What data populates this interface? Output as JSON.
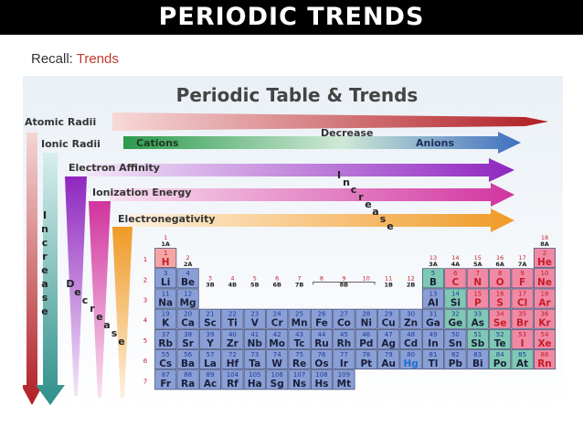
{
  "slide": {
    "title": "PERIODIC TRENDS",
    "recall_label": "Recall:",
    "recall_topic": "Trends",
    "title_bar_color": "#000000",
    "highlight_color": "#c0392b"
  },
  "figure": {
    "heading": "Periodic Table & Trends",
    "trends": {
      "atomic_radii": "Atomic Radii",
      "ionic_radii": "Ionic Radii",
      "cations": "Cations",
      "anions": "Anions",
      "decrease_top": "Decrease",
      "electron_affinity": "Electron Affinity",
      "ionization_energy": "Ionization Energy",
      "electronegativity": "Electronegativity",
      "increase_letters": [
        "I",
        "n",
        "c",
        "r",
        "e",
        "a",
        "s",
        "e"
      ],
      "decrease_letters": [
        "D",
        "e",
        "c",
        "r",
        "e",
        "a",
        "s",
        "e"
      ],
      "increase_diag_letters": [
        "I",
        "n",
        "c",
        "r",
        "e",
        "a",
        "s",
        "e"
      ],
      "decrease_diag_letters": [
        "D",
        "e",
        "c",
        "r",
        "e",
        "a",
        "s",
        "e"
      ]
    },
    "period_labels": [
      "1",
      "2",
      "3",
      "4",
      "5",
      "6",
      "7"
    ],
    "group_labels": [
      {
        "group": 1,
        "main": "1",
        "sub": "1A"
      },
      {
        "group": 2,
        "main": "2",
        "sub": "2A"
      },
      {
        "group": 3,
        "main": "3",
        "sub": "3B"
      },
      {
        "group": 4,
        "main": "4",
        "sub": "4B"
      },
      {
        "group": 5,
        "main": "5",
        "sub": "5B"
      },
      {
        "group": 6,
        "main": "6",
        "sub": "6B"
      },
      {
        "group": 7,
        "main": "7",
        "sub": "7B"
      },
      {
        "group": 9,
        "main": "9",
        "sub": "8B"
      },
      {
        "group": 11,
        "main": "11",
        "sub": "1B"
      },
      {
        "group": 12,
        "main": "12",
        "sub": "2B"
      },
      {
        "group": 13,
        "main": "13",
        "sub": "3A"
      },
      {
        "group": 14,
        "main": "14",
        "sub": "4A"
      },
      {
        "group": 15,
        "main": "15",
        "sub": "5A"
      },
      {
        "group": 16,
        "main": "16",
        "sub": "6A"
      },
      {
        "group": 17,
        "main": "17",
        "sub": "7A"
      },
      {
        "group": 18,
        "main": "18",
        "sub": "8A"
      }
    ],
    "group8_markers": [
      "8",
      "10"
    ],
    "elements": [
      {
        "n": 1,
        "s": "H",
        "p": 1,
        "g": 1,
        "t": "h"
      },
      {
        "n": 2,
        "s": "He",
        "p": 1,
        "g": 18,
        "t": "nm"
      },
      {
        "n": 3,
        "s": "Li",
        "p": 2,
        "g": 1,
        "t": "m"
      },
      {
        "n": 4,
        "s": "Be",
        "p": 2,
        "g": 2,
        "t": "m"
      },
      {
        "n": 5,
        "s": "B",
        "p": 2,
        "g": 13,
        "t": "md"
      },
      {
        "n": 6,
        "s": "C",
        "p": 2,
        "g": 14,
        "t": "nm"
      },
      {
        "n": 7,
        "s": "N",
        "p": 2,
        "g": 15,
        "t": "nm"
      },
      {
        "n": 8,
        "s": "O",
        "p": 2,
        "g": 16,
        "t": "nm"
      },
      {
        "n": 9,
        "s": "F",
        "p": 2,
        "g": 17,
        "t": "nm"
      },
      {
        "n": 10,
        "s": "Ne",
        "p": 2,
        "g": 18,
        "t": "nm"
      },
      {
        "n": 11,
        "s": "Na",
        "p": 3,
        "g": 1,
        "t": "m"
      },
      {
        "n": 12,
        "s": "Mg",
        "p": 3,
        "g": 2,
        "t": "m"
      },
      {
        "n": 13,
        "s": "Al",
        "p": 3,
        "g": 13,
        "t": "m"
      },
      {
        "n": 14,
        "s": "Si",
        "p": 3,
        "g": 14,
        "t": "md"
      },
      {
        "n": 15,
        "s": "P",
        "p": 3,
        "g": 15,
        "t": "nm"
      },
      {
        "n": 16,
        "s": "S",
        "p": 3,
        "g": 16,
        "t": "nm"
      },
      {
        "n": 17,
        "s": "Cl",
        "p": 3,
        "g": 17,
        "t": "nm"
      },
      {
        "n": 18,
        "s": "Ar",
        "p": 3,
        "g": 18,
        "t": "nm"
      },
      {
        "n": 19,
        "s": "K",
        "p": 4,
        "g": 1,
        "t": "m"
      },
      {
        "n": 20,
        "s": "Ca",
        "p": 4,
        "g": 2,
        "t": "m"
      },
      {
        "n": 21,
        "s": "Sc",
        "p": 4,
        "g": 3,
        "t": "m"
      },
      {
        "n": 22,
        "s": "Ti",
        "p": 4,
        "g": 4,
        "t": "m"
      },
      {
        "n": 23,
        "s": "V",
        "p": 4,
        "g": 5,
        "t": "m"
      },
      {
        "n": 24,
        "s": "Cr",
        "p": 4,
        "g": 6,
        "t": "m"
      },
      {
        "n": 25,
        "s": "Mn",
        "p": 4,
        "g": 7,
        "t": "m"
      },
      {
        "n": 26,
        "s": "Fe",
        "p": 4,
        "g": 8,
        "t": "m"
      },
      {
        "n": 27,
        "s": "Co",
        "p": 4,
        "g": 9,
        "t": "m"
      },
      {
        "n": 28,
        "s": "Ni",
        "p": 4,
        "g": 10,
        "t": "m"
      },
      {
        "n": 29,
        "s": "Cu",
        "p": 4,
        "g": 11,
        "t": "m"
      },
      {
        "n": 30,
        "s": "Zn",
        "p": 4,
        "g": 12,
        "t": "m"
      },
      {
        "n": 31,
        "s": "Ga",
        "p": 4,
        "g": 13,
        "t": "m"
      },
      {
        "n": 32,
        "s": "Ge",
        "p": 4,
        "g": 14,
        "t": "md"
      },
      {
        "n": 33,
        "s": "As",
        "p": 4,
        "g": 15,
        "t": "md"
      },
      {
        "n": 34,
        "s": "Se",
        "p": 4,
        "g": 16,
        "t": "nm"
      },
      {
        "n": 35,
        "s": "Br",
        "p": 4,
        "g": 17,
        "t": "nm"
      },
      {
        "n": 36,
        "s": "Kr",
        "p": 4,
        "g": 18,
        "t": "nm"
      },
      {
        "n": 37,
        "s": "Rb",
        "p": 5,
        "g": 1,
        "t": "m"
      },
      {
        "n": 38,
        "s": "Sr",
        "p": 5,
        "g": 2,
        "t": "m"
      },
      {
        "n": 39,
        "s": "Y",
        "p": 5,
        "g": 3,
        "t": "m"
      },
      {
        "n": 40,
        "s": "Zr",
        "p": 5,
        "g": 4,
        "t": "m"
      },
      {
        "n": 41,
        "s": "Nb",
        "p": 5,
        "g": 5,
        "t": "m"
      },
      {
        "n": 42,
        "s": "Mo",
        "p": 5,
        "g": 6,
        "t": "m"
      },
      {
        "n": 43,
        "s": "Tc",
        "p": 5,
        "g": 7,
        "t": "m"
      },
      {
        "n": 44,
        "s": "Ru",
        "p": 5,
        "g": 8,
        "t": "m"
      },
      {
        "n": 45,
        "s": "Rh",
        "p": 5,
        "g": 9,
        "t": "m"
      },
      {
        "n": 46,
        "s": "Pd",
        "p": 5,
        "g": 10,
        "t": "m"
      },
      {
        "n": 47,
        "s": "Ag",
        "p": 5,
        "g": 11,
        "t": "m"
      },
      {
        "n": 48,
        "s": "Cd",
        "p": 5,
        "g": 12,
        "t": "m"
      },
      {
        "n": 49,
        "s": "In",
        "p": 5,
        "g": 13,
        "t": "m"
      },
      {
        "n": 50,
        "s": "Sn",
        "p": 5,
        "g": 14,
        "t": "m"
      },
      {
        "n": 51,
        "s": "Sb",
        "p": 5,
        "g": 15,
        "t": "md"
      },
      {
        "n": 52,
        "s": "Te",
        "p": 5,
        "g": 16,
        "t": "md"
      },
      {
        "n": 53,
        "s": "I",
        "p": 5,
        "g": 17,
        "t": "nm"
      },
      {
        "n": 54,
        "s": "Xe",
        "p": 5,
        "g": 18,
        "t": "nm"
      },
      {
        "n": 55,
        "s": "Cs",
        "p": 6,
        "g": 1,
        "t": "m"
      },
      {
        "n": 56,
        "s": "Ba",
        "p": 6,
        "g": 2,
        "t": "m"
      },
      {
        "n": 57,
        "s": "La",
        "p": 6,
        "g": 3,
        "t": "m"
      },
      {
        "n": 72,
        "s": "Hf",
        "p": 6,
        "g": 4,
        "t": "m"
      },
      {
        "n": 73,
        "s": "Ta",
        "p": 6,
        "g": 5,
        "t": "m"
      },
      {
        "n": 74,
        "s": "W",
        "p": 6,
        "g": 6,
        "t": "m"
      },
      {
        "n": 75,
        "s": "Re",
        "p": 6,
        "g": 7,
        "t": "m"
      },
      {
        "n": 76,
        "s": "Os",
        "p": 6,
        "g": 8,
        "t": "m"
      },
      {
        "n": 77,
        "s": "Ir",
        "p": 6,
        "g": 9,
        "t": "m"
      },
      {
        "n": 78,
        "s": "Pt",
        "p": 6,
        "g": 10,
        "t": "m"
      },
      {
        "n": 79,
        "s": "Au",
        "p": 6,
        "g": 11,
        "t": "m"
      },
      {
        "n": 80,
        "s": "Hg",
        "p": 6,
        "g": 12,
        "t": "mb"
      },
      {
        "n": 81,
        "s": "Tl",
        "p": 6,
        "g": 13,
        "t": "m"
      },
      {
        "n": 82,
        "s": "Pb",
        "p": 6,
        "g": 14,
        "t": "m"
      },
      {
        "n": 83,
        "s": "Bi",
        "p": 6,
        "g": 15,
        "t": "m"
      },
      {
        "n": 84,
        "s": "Po",
        "p": 6,
        "g": 16,
        "t": "md"
      },
      {
        "n": 85,
        "s": "At",
        "p": 6,
        "g": 17,
        "t": "md"
      },
      {
        "n": 86,
        "s": "Rn",
        "p": 6,
        "g": 18,
        "t": "nm"
      },
      {
        "n": 87,
        "s": "Fr",
        "p": 7,
        "g": 1,
        "t": "m"
      },
      {
        "n": 88,
        "s": "Ra",
        "p": 7,
        "g": 2,
        "t": "m"
      },
      {
        "n": 89,
        "s": "Ac",
        "p": 7,
        "g": 3,
        "t": "m"
      },
      {
        "n": 104,
        "s": "Rf",
        "p": 7,
        "g": 4,
        "t": "m"
      },
      {
        "n": 105,
        "s": "Ha",
        "p": 7,
        "g": 5,
        "t": "m"
      },
      {
        "n": 106,
        "s": "Sg",
        "p": 7,
        "g": 6,
        "t": "m"
      },
      {
        "n": 107,
        "s": "Ns",
        "p": 7,
        "g": 7,
        "t": "m"
      },
      {
        "n": 108,
        "s": "Hs",
        "p": 7,
        "g": 8,
        "t": "m"
      },
      {
        "n": 109,
        "s": "Mt",
        "p": 7,
        "g": 9,
        "t": "m"
      }
    ],
    "colors": {
      "atomic_radii_arrow": "#c0282c",
      "ionic_radii_arrow": "#2e9e4f",
      "electron_affinity_arrow": "#9b2fc4",
      "ionization_energy_arrow": "#d63ca8",
      "electronegativity_arrow": "#f2a73a",
      "decrease_arrow": "#3b6fbf",
      "metal_cell": "#8a9fd6",
      "metalloid_cell": "#7fc8b4",
      "nonmetal_cell": "#f08aa4",
      "hydrogen_cell": "#f4a6a6",
      "number_red": "#c41e2a",
      "number_blue": "#1e3c9a"
    }
  }
}
